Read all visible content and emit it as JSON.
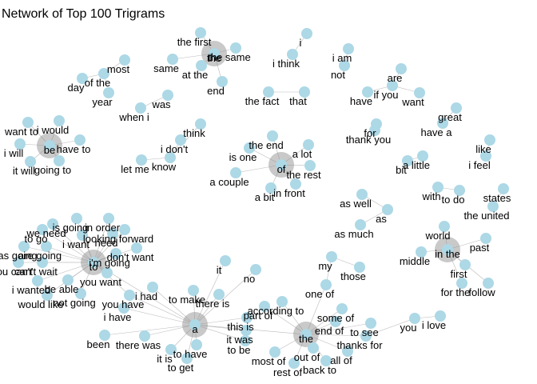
{
  "title": "Network of Top 100 Trigrams",
  "nodes": [
    "the first",
    "the same",
    "the",
    "same",
    "at the",
    "end",
    "most",
    "day",
    "of the",
    "year",
    "was",
    "when i",
    "i",
    "i think",
    "i am",
    "not",
    "the fact",
    "that",
    "are",
    "if you",
    "have",
    "want",
    "great",
    "have a",
    "for",
    "thank you",
    "want to",
    "i would",
    "be",
    "have to",
    "i will",
    "it will",
    "going to",
    "think",
    "i don't",
    "let me",
    "know",
    "the end",
    "is one",
    "a lot",
    "of",
    "the rest",
    "a couple",
    "a bit",
    "in front",
    "like",
    "i feel",
    "bit",
    "a little",
    "with",
    "to do",
    "states",
    "the united",
    "as well",
    "as",
    "as much",
    "world",
    "past",
    "middle",
    "in the",
    "first",
    "for the",
    "follow",
    "is going",
    "in order",
    "we need",
    "looking forward",
    "to go",
    "i want",
    "as going",
    "are going",
    "don't want",
    "i'm going",
    "to",
    "you can't",
    "can't wait",
    "you want",
    "i wanted",
    "be able",
    "would like",
    "not going",
    "you have",
    "i had",
    "i have",
    "been",
    "there was",
    "it is",
    "to have",
    "to get",
    "a",
    "to make",
    "it",
    "no",
    "there is",
    "this is",
    "it was",
    "to be",
    "part of",
    "according to",
    "my",
    "those",
    "one of",
    "some of",
    "the",
    "end of",
    "to see",
    "thanks for",
    "most of",
    "out of",
    "rest of",
    "back to",
    "all of",
    "you",
    "i love",
    "need"
  ]
}
